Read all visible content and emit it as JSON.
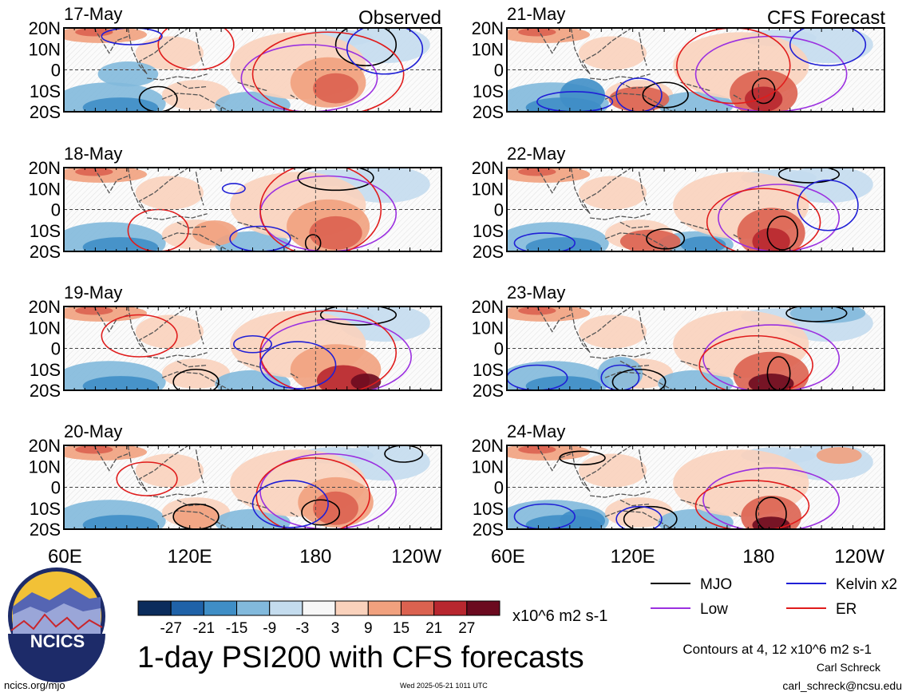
{
  "header": {
    "left_heading": "Observed",
    "right_heading": "CFS Forecast"
  },
  "chart_data": {
    "type": "heatmap",
    "variable": "PSI200",
    "units": "x10^6 m2 s-1",
    "title": "1-day PSI200 with CFS forecasts",
    "contour_note": "Contours at 4, 12 x10^6 m2 s-1",
    "lat_ticks": [
      "20N",
      "10N",
      "0",
      "10S",
      "20S"
    ],
    "lon_ticks": [
      "60E",
      "120E",
      "180",
      "120W"
    ],
    "lat_range": [
      -20,
      20
    ],
    "lon_range": [
      60,
      240
    ],
    "colorbar": {
      "labels": [
        "-27",
        "-21",
        "-15",
        "-9",
        "-3",
        "3",
        "9",
        "15",
        "21",
        "27"
      ],
      "colors": [
        "#0b2c5c",
        "#1f62a8",
        "#3f8ec6",
        "#82b9dc",
        "#c4dcee",
        "#f7f7f7",
        "#fad2bc",
        "#f1a17e",
        "#db6250",
        "#b8272f",
        "#6b0a1f"
      ]
    },
    "legend": [
      {
        "label": "MJO",
        "color": "#000000"
      },
      {
        "label": "Kelvin x2",
        "color": "#1f1fd6"
      },
      {
        "label": "Low",
        "color": "#9b30e0"
      },
      {
        "label": "ER",
        "color": "#e01c1c"
      }
    ],
    "panels": [
      {
        "date": "17-May",
        "group": "Observed",
        "col": 0,
        "row": 0
      },
      {
        "date": "18-May",
        "group": "Observed",
        "col": 0,
        "row": 1
      },
      {
        "date": "19-May",
        "group": "Observed",
        "col": 0,
        "row": 2
      },
      {
        "date": "20-May",
        "group": "Observed",
        "col": 0,
        "row": 3
      },
      {
        "date": "21-May",
        "group": "CFS Forecast",
        "col": 1,
        "row": 0
      },
      {
        "date": "22-May",
        "group": "CFS Forecast",
        "col": 1,
        "row": 1
      },
      {
        "date": "23-May",
        "group": "CFS Forecast",
        "col": 1,
        "row": 2
      },
      {
        "date": "24-May",
        "group": "CFS Forecast",
        "col": 1,
        "row": 3
      }
    ]
  },
  "footer": {
    "logo_text": "NCICS",
    "site": "ncics.org/mjo",
    "timestamp": "Wed 2025-05-21 1011 UTC",
    "author": "Carl Schreck",
    "email": "carl_schreck@ncsu.edu"
  }
}
